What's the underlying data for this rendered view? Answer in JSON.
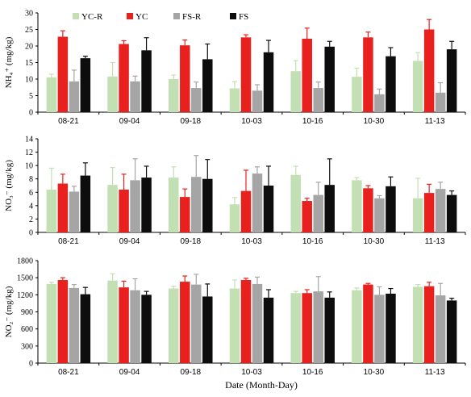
{
  "figure": {
    "xlabel": "Date (Month-Day)"
  },
  "legend": {
    "entries": [
      {
        "name": "YC-R",
        "color": "#c2e0b4"
      },
      {
        "name": "YC",
        "color": "#e8201e"
      },
      {
        "name": "FS-R",
        "color": "#a5a5a5"
      },
      {
        "name": "FS",
        "color": "#0d0d0d"
      }
    ],
    "placement": "top-left"
  },
  "chart_data": [
    {
      "type": "bar",
      "panel": "top",
      "ylabel": "NH₄⁺ (mg/kg)",
      "ylim": [
        0,
        30
      ],
      "yticks": [
        0,
        5,
        10,
        15,
        20,
        25,
        30
      ],
      "categories": [
        "08-21",
        "09-04",
        "09-18",
        "10-03",
        "10-16",
        "10-30",
        "11-13"
      ],
      "series": [
        {
          "name": "YC-R",
          "values": [
            10.5,
            10.8,
            10.0,
            7.2,
            12.4,
            10.7,
            15.5
          ],
          "errors": [
            1.0,
            4.2,
            1.2,
            2.0,
            3.2,
            2.6,
            2.5
          ]
        },
        {
          "name": "YC",
          "values": [
            22.8,
            20.6,
            20.2,
            22.6,
            22.2,
            22.6,
            25.0
          ],
          "errors": [
            1.8,
            1.0,
            1.6,
            0.8,
            3.2,
            1.6,
            3.0
          ]
        },
        {
          "name": "FS-R",
          "values": [
            9.3,
            9.3,
            7.3,
            6.5,
            7.3,
            5.4,
            5.9
          ],
          "errors": [
            3.4,
            1.6,
            1.8,
            1.8,
            1.8,
            1.6,
            3.0
          ]
        },
        {
          "name": "FS",
          "values": [
            16.3,
            18.7,
            16.0,
            18.1,
            19.8,
            16.9,
            19.0
          ],
          "errors": [
            0.6,
            3.8,
            4.6,
            3.6,
            1.6,
            2.6,
            2.4
          ]
        }
      ]
    },
    {
      "type": "bar",
      "panel": "middle",
      "ylabel": "NO₃⁻ (mg/kg)",
      "ylim": [
        0,
        14
      ],
      "yticks": [
        0,
        2,
        4,
        6,
        8,
        10,
        12,
        14
      ],
      "categories": [
        "08-21",
        "09-04",
        "09-18",
        "10-03",
        "10-16",
        "10-30",
        "11-13"
      ],
      "series": [
        {
          "name": "YC-R",
          "values": [
            6.4,
            7.1,
            8.2,
            4.2,
            8.6,
            7.8,
            5.1
          ],
          "errors": [
            3.2,
            2.6,
            1.6,
            1.0,
            1.3,
            0.4,
            3.0
          ]
        },
        {
          "name": "YC",
          "values": [
            7.3,
            6.4,
            5.3,
            6.2,
            4.7,
            6.6,
            5.9
          ],
          "errors": [
            1.4,
            2.3,
            1.2,
            3.1,
            0.4,
            0.4,
            1.3
          ]
        },
        {
          "name": "FS-R",
          "values": [
            6.1,
            7.8,
            8.3,
            8.8,
            5.6,
            5.1,
            6.5
          ],
          "errors": [
            0.8,
            3.2,
            3.2,
            1.0,
            1.9,
            0.4,
            1.0
          ]
        },
        {
          "name": "FS",
          "values": [
            8.5,
            8.2,
            8.0,
            7.0,
            7.1,
            6.9,
            5.6
          ],
          "errors": [
            1.9,
            1.7,
            2.9,
            2.9,
            3.9,
            1.4,
            0.6
          ]
        }
      ]
    },
    {
      "type": "bar",
      "panel": "bottom",
      "ylabel": "NO₂⁻ (mg/kg)",
      "ylim": [
        0,
        1800
      ],
      "yticks": [
        0,
        300,
        600,
        900,
        1200,
        1500,
        1800
      ],
      "categories": [
        "08-21",
        "09-04",
        "09-18",
        "10-03",
        "10-16",
        "10-30",
        "11-13"
      ],
      "series": [
        {
          "name": "YC-R",
          "values": [
            1390,
            1450,
            1310,
            1310,
            1230,
            1280,
            1340
          ],
          "errors": [
            30,
            120,
            40,
            150,
            30,
            40,
            40
          ]
        },
        {
          "name": "YC",
          "values": [
            1460,
            1330,
            1430,
            1460,
            1230,
            1380,
            1350
          ],
          "errors": [
            40,
            110,
            100,
            30,
            60,
            20,
            70
          ]
        },
        {
          "name": "FS-R",
          "values": [
            1320,
            1280,
            1380,
            1390,
            1260,
            1200,
            1190
          ],
          "errors": [
            60,
            200,
            180,
            120,
            260,
            140,
            210
          ]
        },
        {
          "name": "FS",
          "values": [
            1210,
            1200,
            1170,
            1150,
            1150,
            1220,
            1100
          ],
          "errors": [
            120,
            60,
            220,
            140,
            100,
            90,
            40
          ]
        }
      ]
    }
  ]
}
